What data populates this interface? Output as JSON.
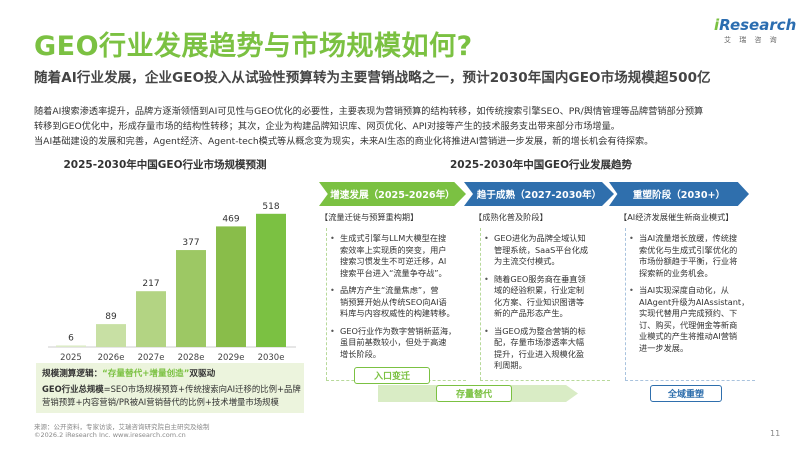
{
  "title": "GEO行业发展趋势与市场规模如何?",
  "logo": {
    "brand_i": "i",
    "brand_rest": "Research",
    "sub": "艾 瑞 咨 询"
  },
  "subtitle": "随着AI行业发展，企业GEO投入从试验性预算转为主要营销战略之一，预计2030年国内GEO市场规模超500亿",
  "body": [
    "随着AI搜索渗透率提升，品牌方逐渐领悟到AI可见性与GEO优化的必要性，主要表现为营销预算的结构转移，如传统搜索引擎SEO、PR/舆情管理等品牌营销部分预算",
    "转移到GEO优化中，形成存量市场的结构性转移；其次，企业为构建品牌知识库、网页优化、API对接等产生的技术服务支出带来部分市场增量。",
    "当AI基础建设的发展和完善，Agent经济、Agent-tech模式等从概念变为现实，未来AI生态的商业化将推进AI营销进一步发展，新的增长机会有待探索。"
  ],
  "chart_data": {
    "type": "bar",
    "title": "2025-2030年中国GEO行业市场规模预测",
    "categories": [
      "2025",
      "2026e",
      "2027e",
      "2028e",
      "2029e",
      "2030e"
    ],
    "values": [
      6,
      89,
      217,
      377,
      469,
      518
    ],
    "xlabel": "",
    "ylabel": "",
    "ylim": [
      0,
      560
    ],
    "grid": false,
    "colors": [
      "#dcebc7",
      "#c8e0a4",
      "#b3d483",
      "#9dc864",
      "#89bd4a",
      "#7bc142"
    ]
  },
  "logic": {
    "head_key": "规模测算逻辑：",
    "head_quote": "“存量替代+增量创造”",
    "head_tail": "双驱动",
    "line1_key": "GEO行业总规模",
    "line1_rest": "=SEO市场规模预算+传统搜索向AI迁移的比例+品牌",
    "line2": "营销预算+内容营销/PR被AI营销替代的比例+技术増量市场规模"
  },
  "trend": {
    "title": "2025-2030年中国GEO行业发展趋势",
    "stages": [
      {
        "label": "增速发展（2025-2026年）",
        "header": "【流量迁徙与预算重构期】",
        "items": [
          [
            "生成式引擎与LLM大模型在搜",
            "索效率上实现质的突变，用户",
            "搜索习惯发生不可逆迁移，AI",
            "搜索平台进入“流量争夺战”。"
          ],
          [
            "品牌方产生“流量焦虑”，营",
            "销预算开始从传统SEO向AI语",
            "料库与内容权威性的构建转移。"
          ],
          [
            "GEO行业作为数字营销新蓝海，",
            "虽目前基数较小，但处于高速",
            "增长阶段。"
          ]
        ],
        "tag": "入口变迁"
      },
      {
        "label": "趋于成熟（2027-2030年）",
        "header": "【成熟化普及阶段】",
        "items": [
          [
            "GEO进化为品牌全域认知",
            "管理系统，SaaS平台化成",
            "为主流交付模式。"
          ],
          [
            "随着GEO服务商在垂直领",
            "域的经验积累，行业定制",
            "化方案、行业知识图谱等",
            "新的产品形态产生。"
          ],
          [
            "当GEO成为整合营销的标",
            "配，存量市场渗透率大幅",
            "提升，行业进入规模化盈",
            "利周期。"
          ]
        ],
        "tag": "存量替代"
      },
      {
        "label": "重塑阶段（2030+）",
        "header": "【AI经济发展催生新商业模式】",
        "items": [
          [
            "当AI流量增长放缓，传统搜",
            "索优化与生成式引擎优化的",
            "市场份额趋于平衡，行业将",
            "探索新的业务机会。"
          ],
          [
            "当AI实现深度自动化，从",
            "AIAgent升级为AIAssistant，",
            "实现代替用户完成预约、下",
            "订、购买，代理佣金等新商",
            "业模式的产生将推动AI营销",
            "进一步发展。"
          ]
        ],
        "tag": "全域重塑"
      }
    ]
  },
  "footer": {
    "source": "来源：公开资料，专家访谈，艾瑞咨询研究院自主研究及绘制",
    "copyright": "©2026.2 iResearch Inc.                www.iresearch.com.cn",
    "page": "11"
  }
}
